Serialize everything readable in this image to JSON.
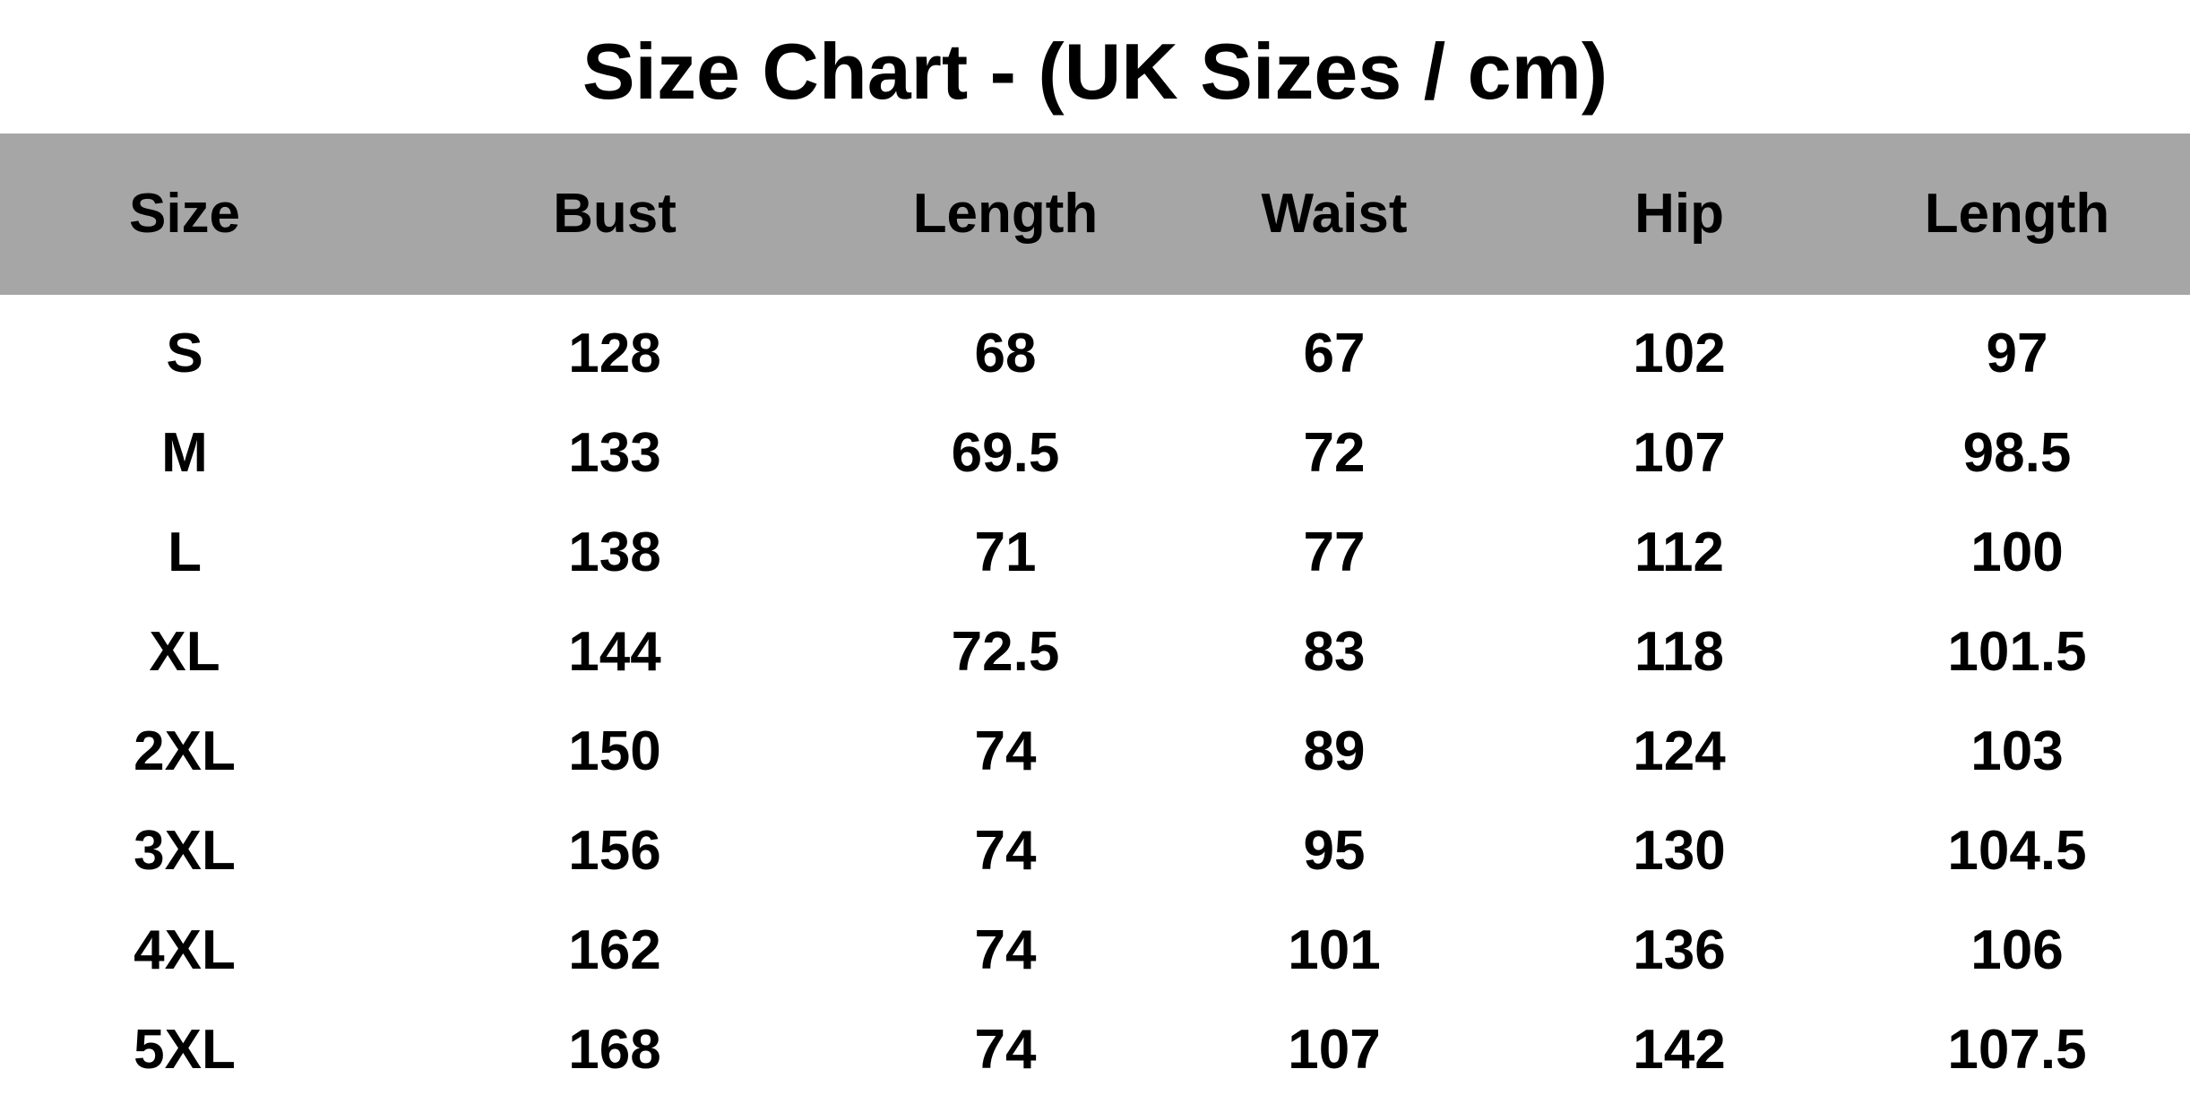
{
  "title": "Size Chart - (UK Sizes / cm)",
  "header_color": "#a6a6a6",
  "columns": [
    "Size",
    "Bust",
    "Length",
    "Waist",
    "Hip",
    "Length"
  ],
  "rows": [
    [
      "S",
      "128",
      "68",
      "67",
      "102",
      "97"
    ],
    [
      "M",
      "133",
      "69.5",
      "72",
      "107",
      "98.5"
    ],
    [
      "L",
      "138",
      "71",
      "77",
      "112",
      "100"
    ],
    [
      "XL",
      "144",
      "72.5",
      "83",
      "118",
      "101.5"
    ],
    [
      "2XL",
      "150",
      "74",
      "89",
      "124",
      "103"
    ],
    [
      "3XL",
      "156",
      "74",
      "95",
      "130",
      "104.5"
    ],
    [
      "4XL",
      "162",
      "74",
      "101",
      "136",
      "106"
    ],
    [
      "5XL",
      "168",
      "74",
      "107",
      "142",
      "107.5"
    ]
  ]
}
